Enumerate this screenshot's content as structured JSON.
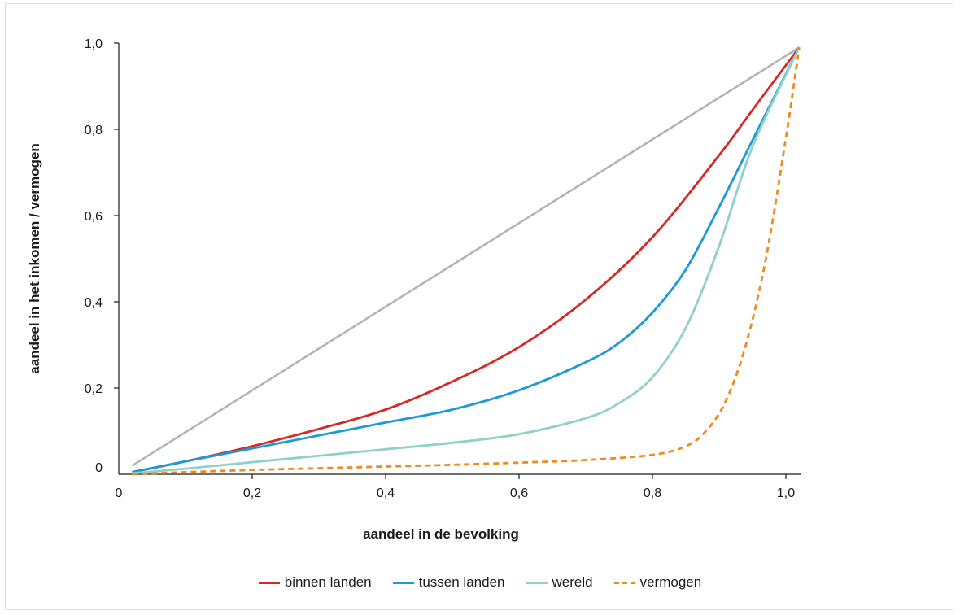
{
  "chart_data": {
    "type": "line",
    "title": "",
    "xlabel": "aandeel in de bevolking",
    "ylabel": "aandeel in het inkomen / vermogen",
    "xlim": [
      0,
      1.0
    ],
    "ylim": [
      0,
      1.0
    ],
    "x_ticks": [
      0,
      0.2,
      0.4,
      0.6,
      0.8,
      1.0
    ],
    "x_tick_labels": [
      "0",
      "0,2",
      "0,4",
      "0,6",
      "0,8",
      "1,0"
    ],
    "y_ticks": [
      0,
      0.2,
      0.4,
      0.6,
      0.8,
      1.0
    ],
    "y_tick_labels": [
      "0",
      "0,2",
      "0,4",
      "0,6",
      "0,8",
      "1,0"
    ],
    "grid": false,
    "legend_position": "bottom",
    "reference_line": {
      "color": "#b3b3b3",
      "x": [
        0.02,
        1.02
      ],
      "y": [
        0.02,
        0.99
      ]
    },
    "series": [
      {
        "name": "binnen landen",
        "color": "#d42a26",
        "dashed": false,
        "x": [
          0.02,
          0.1,
          0.2,
          0.3,
          0.4,
          0.5,
          0.6,
          0.7,
          0.8,
          0.9,
          0.95,
          1.02
        ],
        "y": [
          0.005,
          0.03,
          0.065,
          0.105,
          0.15,
          0.215,
          0.295,
          0.405,
          0.55,
          0.74,
          0.845,
          0.99
        ]
      },
      {
        "name": "tussen landen",
        "color": "#1a9bd7",
        "dashed": false,
        "x": [
          0.02,
          0.1,
          0.2,
          0.3,
          0.4,
          0.5,
          0.6,
          0.7,
          0.75,
          0.8,
          0.85,
          0.9,
          0.95,
          1.02
        ],
        "y": [
          0.005,
          0.03,
          0.06,
          0.09,
          0.12,
          0.15,
          0.195,
          0.26,
          0.305,
          0.375,
          0.475,
          0.62,
          0.775,
          0.99
        ]
      },
      {
        "name": "wereld",
        "color": "#8fd0c8",
        "dashed": false,
        "x": [
          0.02,
          0.1,
          0.2,
          0.3,
          0.4,
          0.5,
          0.6,
          0.7,
          0.75,
          0.8,
          0.85,
          0.9,
          0.95,
          1.02
        ],
        "y": [
          0.002,
          0.013,
          0.028,
          0.043,
          0.058,
          0.073,
          0.093,
          0.13,
          0.165,
          0.225,
          0.34,
          0.53,
          0.76,
          0.99
        ]
      },
      {
        "name": "vermogen",
        "color": "#f08a1c",
        "dashed": true,
        "x": [
          0.02,
          0.1,
          0.2,
          0.3,
          0.4,
          0.5,
          0.6,
          0.7,
          0.8,
          0.85,
          0.88,
          0.91,
          0.94,
          0.97,
          1.0,
          1.02
        ],
        "y": [
          0.0,
          0.005,
          0.01,
          0.014,
          0.018,
          0.022,
          0.027,
          0.033,
          0.045,
          0.065,
          0.1,
          0.17,
          0.3,
          0.5,
          0.78,
          0.99
        ]
      }
    ]
  }
}
